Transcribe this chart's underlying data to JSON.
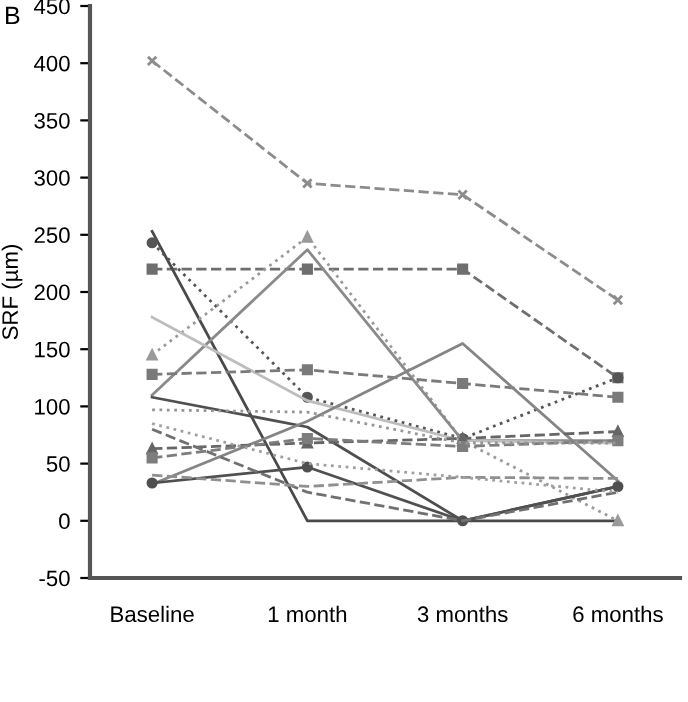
{
  "chart_data": {
    "type": "line",
    "title": "B",
    "ylabel": "SRF (µm)",
    "categories": [
      "Baseline",
      "1 month",
      "3 months",
      "6 months"
    ],
    "ylim": [
      -50,
      450
    ],
    "yticks": [
      -50,
      0,
      50,
      100,
      150,
      200,
      250,
      300,
      350,
      400,
      450
    ],
    "grid": false,
    "legend": false,
    "series": [
      {
        "color": "#8c8c8c",
        "line_style": "dashed",
        "marker": "cross",
        "values": [
          402,
          295,
          285,
          193
        ]
      },
      {
        "color": "#6e6e6e",
        "line_style": "dashed",
        "marker": "square",
        "values": [
          220,
          220,
          220,
          125
        ]
      },
      {
        "color": "#4a4a4a",
        "line_style": "solid",
        "marker": "none",
        "values": [
          253,
          0,
          0,
          0
        ]
      },
      {
        "color": "#555555",
        "line_style": "dotted",
        "marker": "circle",
        "values": [
          243,
          108,
          72,
          125
        ]
      },
      {
        "color": "#9a9a9a",
        "line_style": "dotted",
        "marker": "triangle",
        "values": [
          145,
          248,
          70,
          0
        ]
      },
      {
        "color": "#8a8a8a",
        "line_style": "solid",
        "marker": "none",
        "values": [
          110,
          237,
          70,
          70
        ]
      },
      {
        "color": "#bdbdbd",
        "line_style": "solid",
        "marker": "none",
        "values": [
          178,
          105,
          70,
          68
        ]
      },
      {
        "color": "#7a7a7a",
        "line_style": "dashed",
        "marker": "square",
        "values": [
          128,
          132,
          120,
          108
        ]
      },
      {
        "color": "#4f4f4f",
        "line_style": "solid",
        "marker": "none",
        "values": [
          108,
          82,
          0,
          30
        ]
      },
      {
        "color": "#858585",
        "line_style": "solid",
        "marker": "none",
        "values": [
          32,
          87,
          155,
          35
        ]
      },
      {
        "color": "#505050",
        "line_style": "solid",
        "marker": "circle",
        "values": [
          33,
          47,
          0,
          30
        ]
      },
      {
        "color": "#666666",
        "line_style": "dashed",
        "marker": "triangle",
        "values": [
          63,
          68,
          72,
          78
        ]
      },
      {
        "color": "#7d7d7d",
        "line_style": "dashed",
        "marker": "square",
        "values": [
          55,
          72,
          65,
          70
        ]
      },
      {
        "color": "#707070",
        "line_style": "dashed",
        "marker": "none",
        "values": [
          80,
          25,
          0,
          25
        ]
      },
      {
        "color": "#8f8f8f",
        "line_style": "dashed",
        "marker": "none",
        "values": [
          40,
          30,
          38,
          37
        ]
      },
      {
        "color": "#a0a0a0",
        "line_style": "dotted",
        "marker": "none",
        "values": [
          85,
          50,
          38,
          25
        ]
      },
      {
        "color": "#959595",
        "line_style": "dotted",
        "marker": "none",
        "values": [
          97,
          95,
          68,
          68
        ]
      }
    ]
  }
}
